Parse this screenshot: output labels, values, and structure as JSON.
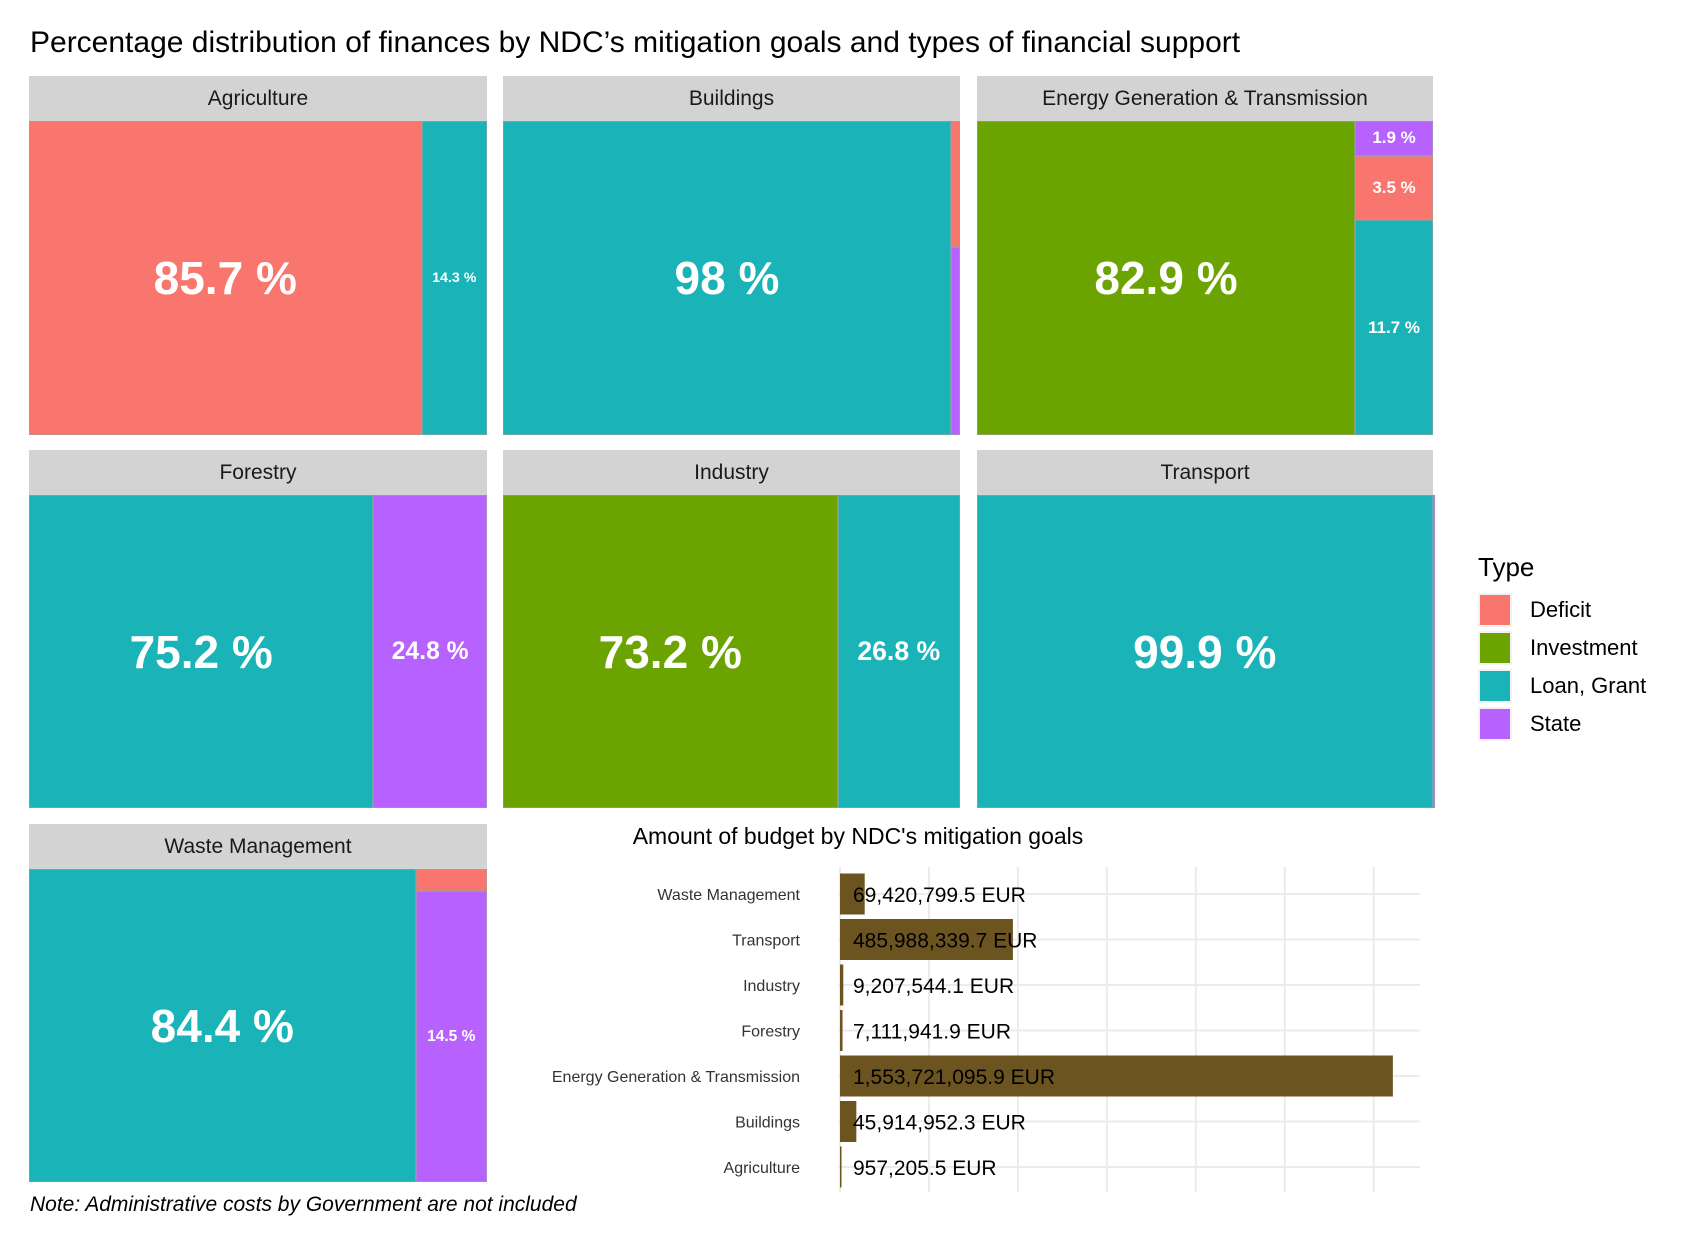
{
  "title": "Percentage distribution of finances by NDC’s mitigation goals and types of financial support",
  "note": "Note: Administrative costs by Government are not included",
  "colors": {
    "Deficit": "#F8766D",
    "Investment": "#6BA300",
    "Loan, Grant": "#1AB3B7",
    "State": "#B762FF",
    "bar": "#6B5420"
  },
  "legend": {
    "title": "Type",
    "items": [
      "Deficit",
      "Investment",
      "Loan, Grant",
      "State"
    ]
  },
  "chart_data": [
    {
      "type": "treemap",
      "title": "Percentage distribution of finances by NDC’s mitigation goals and types of financial support",
      "facets": [
        {
          "name": "Agriculture",
          "tiles": [
            {
              "type": "Deficit",
              "value": 85.7,
              "label": "85.7 %"
            },
            {
              "type": "Loan, Grant",
              "value": 14.3,
              "label": "14.3 %"
            }
          ]
        },
        {
          "name": "Buildings",
          "tiles": [
            {
              "type": "Loan, Grant",
              "value": 98,
              "label": "98 %"
            },
            {
              "type": "Deficit",
              "value": 0.8
            },
            {
              "type": "State",
              "value": 1.2
            }
          ]
        },
        {
          "name": "Energy Generation & Transmission",
          "tiles": [
            {
              "type": "Investment",
              "value": 82.9,
              "label": "82.9 %"
            },
            {
              "type": "State",
              "value": 1.9,
              "label": "1.9 %"
            },
            {
              "type": "Deficit",
              "value": 3.5,
              "label": "3.5 %"
            },
            {
              "type": "Loan, Grant",
              "value": 11.7,
              "label": "11.7 %"
            }
          ]
        },
        {
          "name": "Forestry",
          "tiles": [
            {
              "type": "Loan, Grant",
              "value": 75.2,
              "label": "75.2 %"
            },
            {
              "type": "State",
              "value": 24.8,
              "label": "24.8 %"
            }
          ]
        },
        {
          "name": "Industry",
          "tiles": [
            {
              "type": "Investment",
              "value": 73.2,
              "label": "73.2 %"
            },
            {
              "type": "Loan, Grant",
              "value": 26.8,
              "label": "26.8 %"
            }
          ]
        },
        {
          "name": "Transport",
          "tiles": [
            {
              "type": "Loan, Grant",
              "value": 99.9,
              "label": "99.9 %"
            },
            {
              "type": "State",
              "value": 0.1
            }
          ]
        },
        {
          "name": "Waste Management",
          "tiles": [
            {
              "type": "Loan, Grant",
              "value": 84.4,
              "label": "84.4 %"
            },
            {
              "type": "Deficit",
              "value": 1.1
            },
            {
              "type": "State",
              "value": 14.5,
              "label": "14.5 %"
            }
          ]
        }
      ]
    },
    {
      "type": "bar",
      "orientation": "horizontal",
      "title": "Amount of budget by NDC's mitigation goals",
      "categories": [
        "Waste Management",
        "Transport",
        "Industry",
        "Forestry",
        "Energy Generation & Transmission",
        "Buildings",
        "Agriculture"
      ],
      "values": [
        69420799.5,
        485988339.7,
        9207544.1,
        7111941.9,
        1553721095.9,
        45914952.3,
        957205.5
      ],
      "labels": [
        "69,420,799.5 EUR",
        "485,988,339.7 EUR",
        "9,207,544.1 EUR",
        "7,111,941.9 EUR",
        "1,553,721,095.9 EUR",
        "45,914,952.3 EUR",
        "957,205.5 EUR"
      ],
      "xlim": [
        0,
        1630000000
      ],
      "x_gridlines": [
        0,
        250000000,
        500000000,
        750000000,
        1000000000,
        1250000000,
        1500000000
      ],
      "grid": true
    }
  ]
}
